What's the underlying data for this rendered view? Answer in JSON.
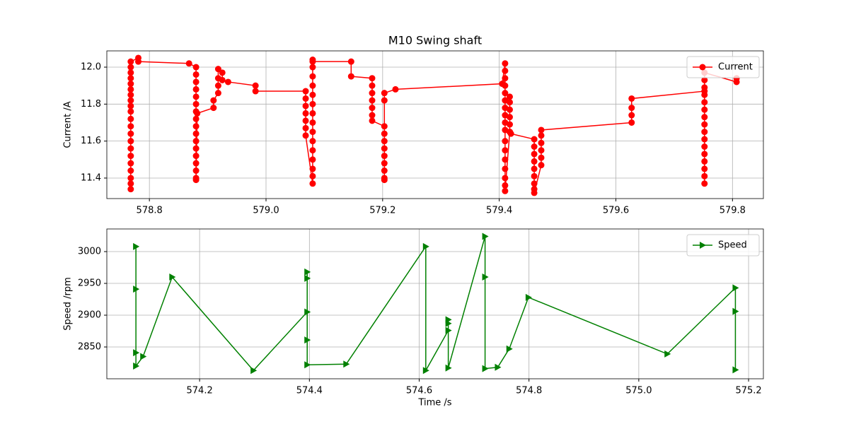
{
  "chart_data": [
    {
      "type": "line",
      "title": "M10 Swing shaft",
      "ylabel": "Current /A",
      "x": [
        578.768,
        578.768,
        578.768,
        578.768,
        578.768,
        578.768,
        578.768,
        578.768,
        578.768,
        578.768,
        578.768,
        578.768,
        578.768,
        578.768,
        578.768,
        578.768,
        578.768,
        578.768,
        578.768,
        578.768,
        578.768,
        578.781,
        578.781,
        578.868,
        578.88,
        578.88,
        578.88,
        578.88,
        578.88,
        578.88,
        578.88,
        578.88,
        578.88,
        578.88,
        578.88,
        578.88,
        578.88,
        578.88,
        578.88,
        578.88,
        578.88,
        578.882,
        578.91,
        578.91,
        578.918,
        578.918,
        578.918,
        578.918,
        578.925,
        578.925,
        578.935,
        578.982,
        578.982,
        579.068,
        579.068,
        579.068,
        579.068,
        579.068,
        579.068,
        579.068,
        579.08,
        579.08,
        579.08,
        579.08,
        579.08,
        579.08,
        579.08,
        579.08,
        579.08,
        579.08,
        579.08,
        579.08,
        579.08,
        579.08,
        579.08,
        579.08,
        579.146,
        579.146,
        579.182,
        579.182,
        579.182,
        579.182,
        579.182,
        579.182,
        579.182,
        579.203,
        579.203,
        579.203,
        579.203,
        579.203,
        579.203,
        579.203,
        579.203,
        579.203,
        579.203,
        579.203,
        579.222,
        579.405,
        579.41,
        579.41,
        579.41,
        579.41,
        579.41,
        579.41,
        579.41,
        579.41,
        579.41,
        579.41,
        579.41,
        579.41,
        579.41,
        579.41,
        579.41,
        579.41,
        579.41,
        579.418,
        579.418,
        579.418,
        579.418,
        579.418,
        579.418,
        579.418,
        579.42,
        579.46,
        579.46,
        579.46,
        579.46,
        579.46,
        579.46,
        579.46,
        579.46,
        579.46,
        579.472,
        579.472,
        579.472,
        579.472,
        579.472,
        579.472,
        579.627,
        579.627,
        579.627,
        579.627,
        579.752,
        579.752,
        579.752,
        579.752,
        579.752,
        579.752,
        579.752,
        579.752,
        579.752,
        579.752,
        579.752,
        579.752,
        579.752,
        579.752,
        579.752,
        579.752,
        579.752,
        579.807,
        579.807
      ],
      "series": [
        {
          "name": "Current",
          "color": "#ff0000",
          "marker": "o",
          "values": [
            11.34,
            11.37,
            11.4,
            11.44,
            11.48,
            11.52,
            11.56,
            11.6,
            11.64,
            11.68,
            11.72,
            11.76,
            11.79,
            11.82,
            11.85,
            11.88,
            11.91,
            11.94,
            11.97,
            12.0,
            12.03,
            12.05,
            12.03,
            12.02,
            12.0,
            11.96,
            11.92,
            11.88,
            11.84,
            11.8,
            11.76,
            11.72,
            11.68,
            11.64,
            11.6,
            11.56,
            11.52,
            11.48,
            11.44,
            11.4,
            11.39,
            11.75,
            11.78,
            11.82,
            11.86,
            11.9,
            11.94,
            11.99,
            11.97,
            11.93,
            11.92,
            11.9,
            11.87,
            11.87,
            11.83,
            11.79,
            11.75,
            11.71,
            11.67,
            11.63,
            11.37,
            11.41,
            11.45,
            11.5,
            11.55,
            11.6,
            11.65,
            11.7,
            11.75,
            11.8,
            11.85,
            11.9,
            11.95,
            12.0,
            12.04,
            12.03,
            12.03,
            11.95,
            11.94,
            11.9,
            11.86,
            11.82,
            11.78,
            11.74,
            11.71,
            11.68,
            11.64,
            11.6,
            11.56,
            11.52,
            11.48,
            11.44,
            11.4,
            11.39,
            11.82,
            11.86,
            11.88,
            11.91,
            12.02,
            11.98,
            11.94,
            11.9,
            11.86,
            11.82,
            11.78,
            11.74,
            11.7,
            11.66,
            11.6,
            11.55,
            11.5,
            11.45,
            11.4,
            11.36,
            11.33,
            11.65,
            11.69,
            11.73,
            11.77,
            11.81,
            11.84,
            11.65,
            11.64,
            11.61,
            11.57,
            11.53,
            11.49,
            11.45,
            11.41,
            11.37,
            11.34,
            11.32,
            11.47,
            11.51,
            11.55,
            11.59,
            11.63,
            11.66,
            11.7,
            11.74,
            11.78,
            11.83,
            11.87,
            11.37,
            11.41,
            11.45,
            11.49,
            11.53,
            11.57,
            11.61,
            11.65,
            11.69,
            11.73,
            11.77,
            11.81,
            11.85,
            11.89,
            11.93,
            11.97,
            11.92,
            11.94
          ]
        }
      ],
      "xlim": [
        578.727,
        579.853
      ],
      "ylim": [
        11.289,
        12.088
      ],
      "xticks": [
        578.8,
        {
          "value": 579,
          "label": "579.0"
        },
        579.2,
        579.4,
        579.6,
        579.8
      ],
      "yticks": [
        11.4,
        11.6,
        11.8,
        {
          "value": 12,
          "label": "12.0"
        }
      ],
      "grid": true,
      "legend": "upper right"
    },
    {
      "type": "line",
      "xlabel": "Time /s",
      "ylabel": "Speed /rpm",
      "x": [
        574.084,
        574.084,
        574.084,
        574.084,
        574.097,
        574.15,
        574.298,
        574.396,
        574.396,
        574.396,
        574.396,
        574.396,
        574.467,
        574.612,
        574.612,
        574.653,
        574.653,
        574.653,
        574.653,
        574.72,
        574.72,
        574.72,
        574.743,
        574.764,
        574.799,
        575.052,
        575.176,
        575.176,
        575.176
      ],
      "series": [
        {
          "name": "Speed",
          "color": "#008000",
          "marker": ">",
          "values": [
            3008,
            2941,
            2841,
            2820,
            2835,
            2960,
            2813,
            2905,
            2968,
            2958,
            2861,
            2822,
            2823,
            3008,
            2813,
            2876,
            2893,
            2887,
            2817,
            3024,
            2960,
            2816,
            2818,
            2847,
            2928,
            2839,
            2943,
            2906,
            2814
          ]
        }
      ],
      "xlim": [
        574.031,
        575.227
      ],
      "ylim": [
        2800,
        3035.6
      ],
      "xticks": [
        574.2,
        574.4,
        574.6,
        574.8,
        {
          "value": 575,
          "label": "575.0"
        },
        575.2
      ],
      "yticks": [
        2850,
        2900,
        2950,
        3000
      ],
      "grid": true,
      "legend": "upper right"
    }
  ]
}
